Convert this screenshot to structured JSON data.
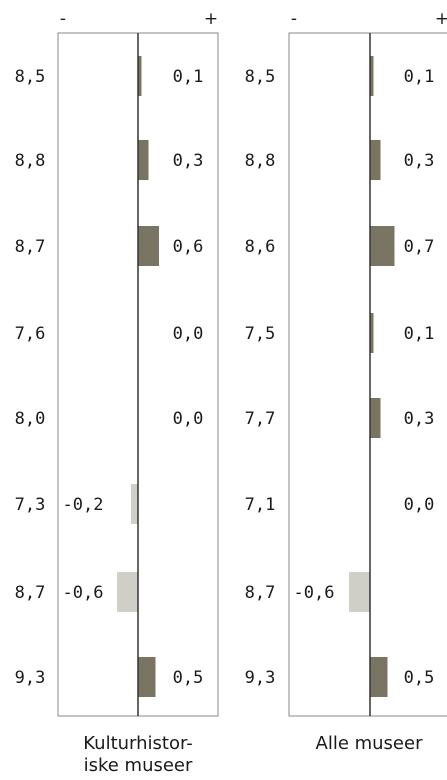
{
  "chart_data": {
    "type": "bar",
    "orientation": "horizontal",
    "axis_minus_label": "-",
    "axis_plus_label": "+",
    "xlim": [
      -1,
      1
    ],
    "colors": {
      "positive": "#7a7562",
      "negative": "#cfcfc8",
      "axis": "#333333",
      "frame": "#8a8a8a"
    },
    "panels": [
      {
        "caption_lines": [
          "Kulturhistor-",
          "iske museer"
        ],
        "scores": [
          "8,5",
          "8,8",
          "8,7",
          "7,6",
          "8,0",
          "7,3",
          "8,7",
          "9,3"
        ],
        "values": [
          0.1,
          0.3,
          0.6,
          0.0,
          0.0,
          -0.2,
          -0.6,
          0.5
        ],
        "value_labels": [
          "0,1",
          "0,3",
          "0,6",
          "0,0",
          "0,0",
          "-0,2",
          "-0,6",
          "0,5"
        ]
      },
      {
        "caption_lines": [
          "Alle museer"
        ],
        "scores": [
          "8,5",
          "8,8",
          "8,6",
          "7,5",
          "7,7",
          "7,1",
          "8,7",
          "9,3"
        ],
        "values": [
          0.1,
          0.3,
          0.7,
          0.1,
          0.3,
          0.0,
          -0.6,
          0.5
        ],
        "value_labels": [
          "0,1",
          "0,3",
          "0,7",
          "0,1",
          "0,3",
          "0,0",
          "-0,6",
          "0,5"
        ]
      }
    ]
  }
}
